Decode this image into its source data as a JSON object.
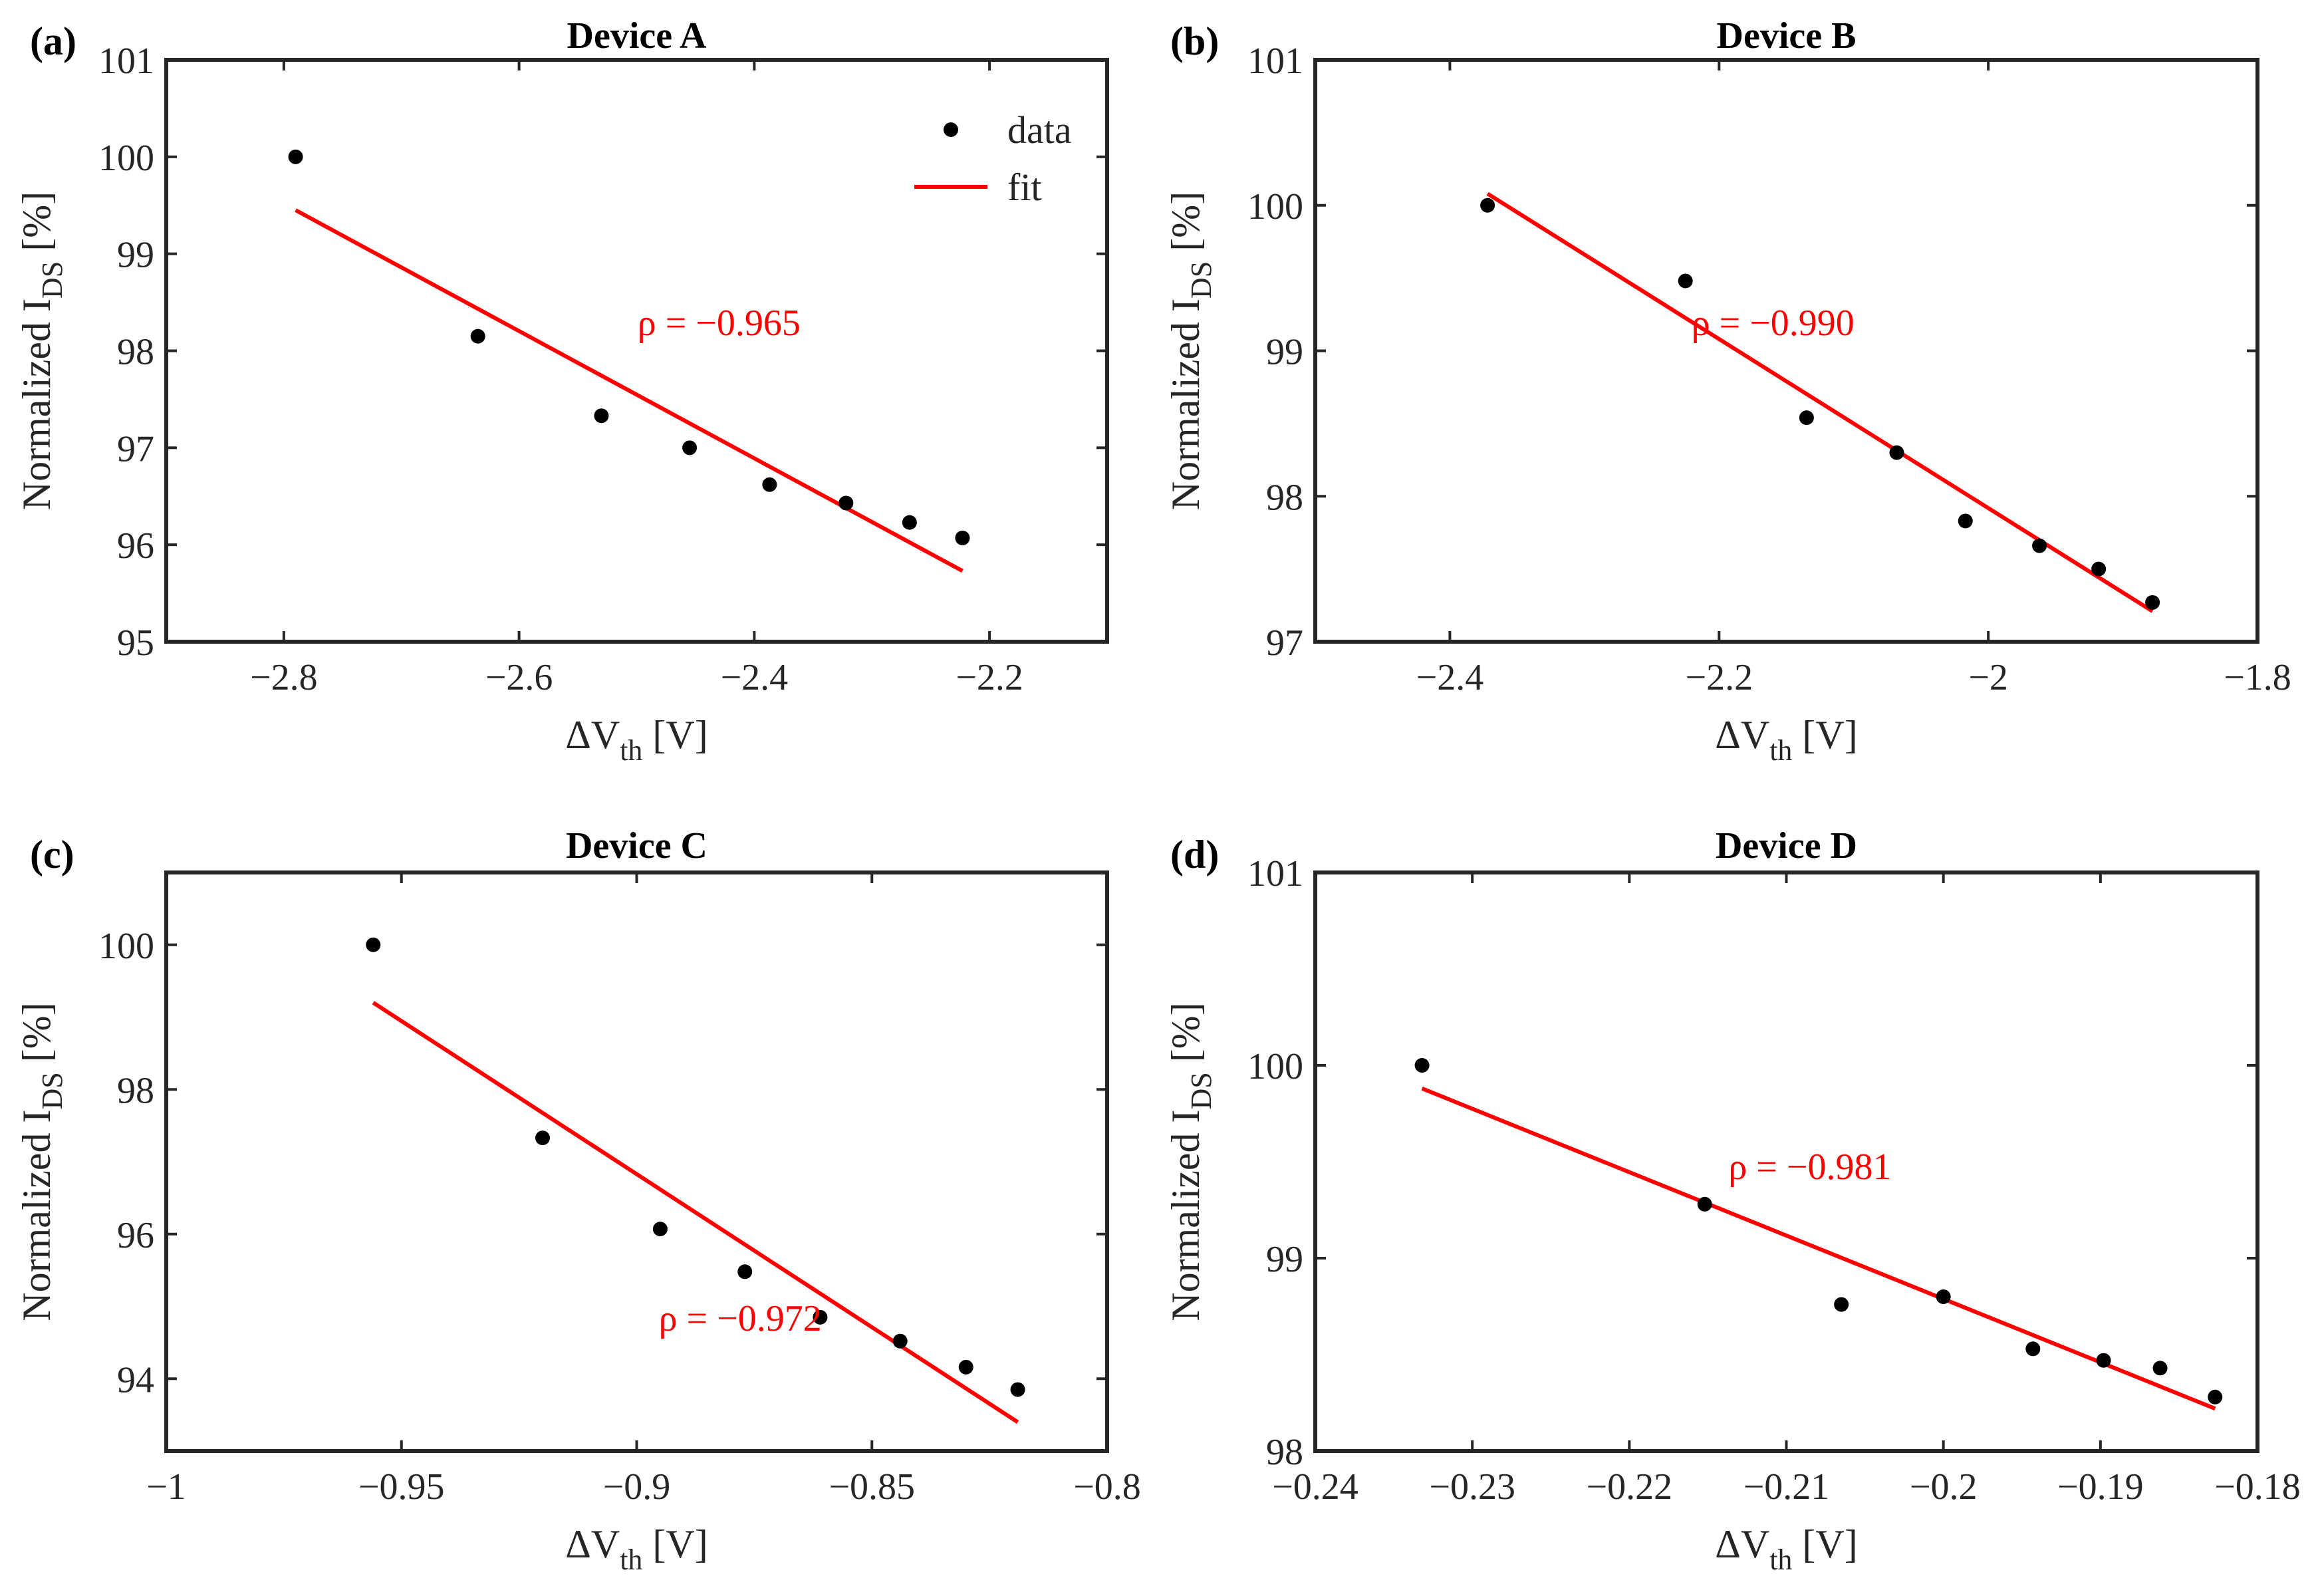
{
  "chart_data": [
    {
      "type": "scatter",
      "panel_label": "(a)",
      "title": "Device A",
      "xlabel": {
        "main": "ΔV",
        "sub": "th",
        "unit": " [V]"
      },
      "ylabel": {
        "main": "Normalized I",
        "sub": "DS",
        "unit": " [%]"
      },
      "xlim": [
        -2.9,
        -2.1
      ],
      "ylim": [
        95,
        101
      ],
      "xticks": [
        -2.8,
        -2.6,
        -2.4,
        -2.2
      ],
      "xtick_labels": [
        "−2.8",
        "−2.6",
        "−2.4",
        "−2.2"
      ],
      "yticks": [
        95,
        96,
        97,
        98,
        99,
        100,
        101
      ],
      "ytick_labels": [
        "95",
        "96",
        "97",
        "98",
        "99",
        "100",
        "101"
      ],
      "series": [
        {
          "name": "data",
          "x": [
            -2.79,
            -2.635,
            -2.53,
            -2.455,
            -2.387,
            -2.322,
            -2.268,
            -2.223
          ],
          "y": [
            100.0,
            98.15,
            97.33,
            97.0,
            96.62,
            96.43,
            96.23,
            96.07
          ]
        },
        {
          "name": "fit",
          "x": [
            -2.79,
            -2.223
          ],
          "y": [
            99.45,
            95.73
          ]
        }
      ],
      "annotation": {
        "text": "ρ = −0.965",
        "x": -2.43,
        "y": 98.3
      },
      "legend": {
        "entries": [
          "data",
          "fit"
        ],
        "location": "top-right"
      },
      "grid": false
    },
    {
      "type": "scatter",
      "panel_label": "(b)",
      "title": "Device B",
      "xlabel": {
        "main": "ΔV",
        "sub": "th",
        "unit": " [V]"
      },
      "ylabel": {
        "main": "Normalized I",
        "sub": "DS",
        "unit": " [%]"
      },
      "xlim": [
        -2.5,
        -1.8
      ],
      "ylim": [
        97,
        101
      ],
      "xticks": [
        -2.4,
        -2.2,
        -2.0,
        -1.8
      ],
      "xtick_labels": [
        "−2.4",
        "−2.2",
        "−2",
        "−1.8"
      ],
      "yticks": [
        97,
        98,
        99,
        100,
        101
      ],
      "ytick_labels": [
        "97",
        "98",
        "99",
        "100",
        "101"
      ],
      "series": [
        {
          "name": "data",
          "x": [
            -2.372,
            -2.225,
            -2.135,
            -2.068,
            -2.017,
            -1.962,
            -1.918,
            -1.878
          ],
          "y": [
            100.0,
            99.48,
            98.54,
            98.3,
            97.83,
            97.66,
            97.5,
            97.27
          ]
        },
        {
          "name": "fit",
          "x": [
            -2.372,
            -1.878
          ],
          "y": [
            100.08,
            97.21
          ]
        }
      ],
      "annotation": {
        "text": "ρ = −0.990",
        "x": -2.16,
        "y": 99.2
      },
      "legend": null,
      "grid": false
    },
    {
      "type": "scatter",
      "panel_label": "(c)",
      "title": "Device C",
      "xlabel": {
        "main": "ΔV",
        "sub": "th",
        "unit": " [V]"
      },
      "ylabel": {
        "main": "Normalized I",
        "sub": "DS",
        "unit": " [%]"
      },
      "xlim": [
        -1.0,
        -0.8
      ],
      "ylim": [
        93,
        101
      ],
      "xticks": [
        -1.0,
        -0.95,
        -0.9,
        -0.85,
        -0.8
      ],
      "xtick_labels": [
        "−1",
        "−0.95",
        "−0.9",
        "−0.85",
        "−0.8"
      ],
      "yticks": [
        94,
        96,
        98,
        100
      ],
      "ytick_labels": [
        "94",
        "96",
        "98",
        "100"
      ],
      "series": [
        {
          "name": "data",
          "x": [
            -0.956,
            -0.92,
            -0.895,
            -0.877,
            -0.861,
            -0.844,
            -0.83,
            -0.819
          ],
          "y": [
            100.0,
            97.33,
            96.07,
            95.48,
            94.85,
            94.52,
            94.16,
            93.85
          ]
        },
        {
          "name": "fit",
          "x": [
            -0.956,
            -0.819
          ],
          "y": [
            99.2,
            93.4
          ]
        }
      ],
      "annotation": {
        "text": "ρ = −0.972",
        "x": -0.878,
        "y": 94.85
      },
      "legend": null,
      "grid": false
    },
    {
      "type": "scatter",
      "panel_label": "(d)",
      "title": "Device D",
      "xlabel": {
        "main": "ΔV",
        "sub": "th",
        "unit": " [V]"
      },
      "ylabel": {
        "main": "Normalized I",
        "sub": "DS",
        "unit": " [%]"
      },
      "xlim": [
        -0.24,
        -0.18
      ],
      "ylim": [
        98,
        101
      ],
      "xticks": [
        -0.24,
        -0.23,
        -0.22,
        -0.21,
        -0.2,
        -0.19,
        -0.18
      ],
      "xtick_labels": [
        "−0.24",
        "−0.23",
        "−0.22",
        "−0.21",
        "−0.2",
        "−0.19",
        "−0.18"
      ],
      "yticks": [
        98,
        99,
        100,
        101
      ],
      "ytick_labels": [
        "98",
        "99",
        "100",
        "101"
      ],
      "series": [
        {
          "name": "data",
          "x": [
            -0.2332,
            -0.2152,
            -0.2065,
            -0.2,
            -0.1943,
            -0.1898,
            -0.1862,
            -0.1827
          ],
          "y": [
            100.0,
            99.28,
            98.76,
            98.8,
            98.53,
            98.47,
            98.43,
            98.28
          ]
        },
        {
          "name": "fit",
          "x": [
            -0.2332,
            -0.1827
          ],
          "y": [
            99.88,
            98.22
          ]
        }
      ],
      "annotation": {
        "text": "ρ = −0.981",
        "x": -0.2085,
        "y": 99.48
      },
      "legend": null,
      "grid": false
    }
  ],
  "colors": {
    "data_marker": "#000000",
    "fit_line": "#ff0000",
    "axis": "#262626",
    "annotation": "#ff0000"
  }
}
